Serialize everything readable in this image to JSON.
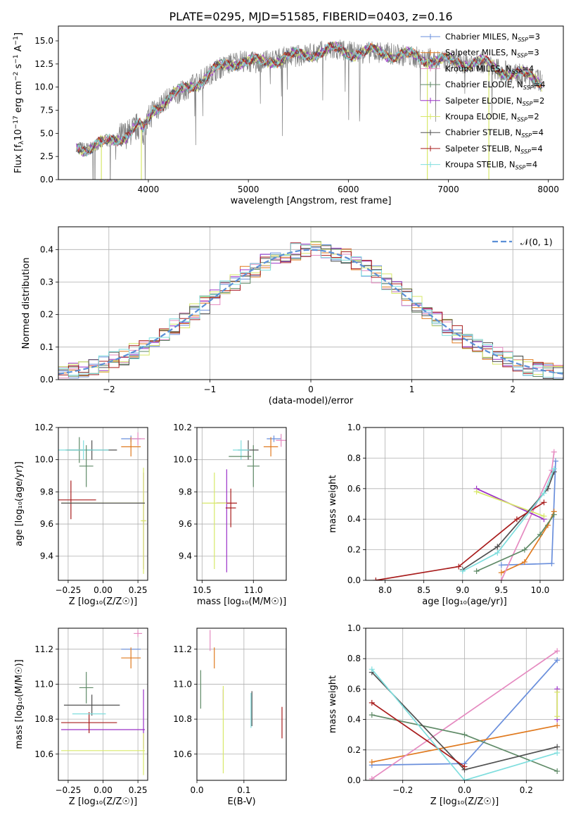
{
  "title": "PLATE=0295, MJD=51585, FIBERID=0403, z=0.16",
  "colors": {
    "Chabrier MILES": "#6a8fdc",
    "Salpeter MILES": "#e07a1f",
    "Kroupa MILES": "#e58ac0",
    "Chabrier ELODIE": "#5f8a67",
    "Salpeter ELODIE": "#9b30c8",
    "Kroupa ELODIE": "#d8e86a",
    "Chabrier STELIB": "#505050",
    "Salpeter STELIB": "#a81c1c",
    "Kroupa STELIB": "#7fdede",
    "data": "#808080",
    "normal": "#5b8fd6",
    "grid": "#b0b0b0"
  },
  "chart_data": [
    {
      "type": "line",
      "panel": "spectrum",
      "xlabel": "wavelength [Angstrom, rest frame]",
      "ylabel_parts": [
        "Flux [f",
        "λ",
        "10",
        "−17",
        " erg cm",
        "−2",
        " s",
        "−1",
        " A",
        "−1",
        "]"
      ],
      "xlim": [
        3100,
        8150
      ],
      "ylim": [
        0,
        16.6
      ],
      "xticks": [
        4000,
        5000,
        6000,
        7000,
        8000
      ],
      "yticks": [
        0.0,
        2.5,
        5.0,
        7.5,
        10.0,
        12.5,
        15.0
      ],
      "continuum_knots": [
        [
          3280,
          3.6
        ],
        [
          3400,
          3.4
        ],
        [
          3550,
          3.9
        ],
        [
          3650,
          4.3
        ],
        [
          3800,
          5.0
        ],
        [
          3900,
          5.8
        ],
        [
          3950,
          5.2
        ],
        [
          4050,
          7.6
        ],
        [
          4200,
          8.8
        ],
        [
          4350,
          9.6
        ],
        [
          4500,
          10.6
        ],
        [
          4700,
          12.0
        ],
        [
          4900,
          12.9
        ],
        [
          5100,
          12.6
        ],
        [
          5300,
          13.1
        ],
        [
          5500,
          13.4
        ],
        [
          5700,
          13.8
        ],
        [
          5900,
          14.0
        ],
        [
          6100,
          13.7
        ],
        [
          6300,
          13.8
        ],
        [
          6500,
          13.5
        ],
        [
          6700,
          13.2
        ],
        [
          6900,
          12.9
        ],
        [
          7100,
          12.6
        ],
        [
          7300,
          12.8
        ],
        [
          7500,
          11.9
        ],
        [
          7700,
          11.4
        ],
        [
          7900,
          10.8
        ],
        [
          7940,
          10.5
        ]
      ],
      "legend": [
        {
          "label": "Chabrier MILES, N",
          "sub": "SSP",
          "val": "=3"
        },
        {
          "label": "Salpeter MILES, N",
          "sub": "SSP",
          "val": "=3"
        },
        {
          "label": "Kroupa MILES, N",
          "sub": "SSP",
          "val": "=4"
        },
        {
          "label": "Chabrier ELODIE, N",
          "sub": "SSP",
          "val": "=4"
        },
        {
          "label": "Salpeter ELODIE, N",
          "sub": "SSP",
          "val": "=2"
        },
        {
          "label": "Kroupa ELODIE, N",
          "sub": "SSP",
          "val": "=2"
        },
        {
          "label": "Chabrier STELIB, N",
          "sub": "SSP",
          "val": "=4"
        },
        {
          "label": "Salpeter STELIB, N",
          "sub": "SSP",
          "val": "=4"
        },
        {
          "label": "Kroupa STELIB, N",
          "sub": "SSP",
          "val": "=4"
        }
      ],
      "models": [
        "Chabrier MILES",
        "Salpeter MILES",
        "Kroupa MILES",
        "Chabrier ELODIE",
        "Salpeter ELODIE",
        "Kroupa ELODIE",
        "Chabrier STELIB",
        "Salpeter STELIB",
        "Kroupa STELIB"
      ]
    },
    {
      "type": "histogram",
      "panel": "residuals",
      "xlabel": "(data-model)/error",
      "ylabel": "Normed distribution",
      "xlim": [
        -2.5,
        2.5
      ],
      "ylim": [
        0,
        0.47
      ],
      "xticks": [
        -2,
        -1,
        0,
        1,
        2
      ],
      "xticklabels": [
        "−2",
        "−1",
        "0",
        "1",
        "2"
      ],
      "yticks": [
        0.0,
        0.1,
        0.2,
        0.3,
        0.4
      ],
      "legend_label": "𝒩(0, 1)",
      "bin_width": 0.1
    },
    {
      "type": "scatter",
      "panel": "age-vs-Z",
      "xlabel": "Z [log₁₀(Z/Z☉)]",
      "ylabel": "age  [log₁₀(age/yr)]",
      "xlim": [
        -0.32,
        0.32
      ],
      "ylim": [
        9.25,
        10.2
      ],
      "xticks": [
        -0.25,
        0.0,
        0.25
      ],
      "xticklabels": [
        "−0.25",
        "0.00",
        "0.25"
      ],
      "yticks": [
        9.4,
        9.6,
        9.8,
        10.0,
        10.2
      ],
      "points": [
        {
          "model": "Chabrier MILES",
          "x": 0.2,
          "y": 10.13,
          "xerr": 0.07,
          "yerr": 0.02
        },
        {
          "model": "Salpeter MILES",
          "x": 0.2,
          "y": 10.08,
          "xerr": 0.07,
          "yerr": 0.06
        },
        {
          "model": "Kroupa MILES",
          "x": 0.25,
          "y": 10.13,
          "xerr": 0.05,
          "yerr": 0.04
        },
        {
          "model": "Chabrier ELODIE",
          "x": -0.17,
          "y": 10.06,
          "xerr": 0.1,
          "yerr": 0.08
        },
        {
          "model": "Salpeter ELODIE",
          "x": 0.29,
          "y": 9.62,
          "xerr": 0.01,
          "yerr": 0.3
        },
        {
          "model": "Kroupa ELODIE",
          "x": 0.29,
          "y": 9.62,
          "xerr": 0.02,
          "yerr": 0.33
        },
        {
          "model": "Chabrier STELIB",
          "x": -0.08,
          "y": 10.06,
          "xerr": 0.18,
          "yerr": 0.06
        },
        {
          "model": "Salpeter STELIB",
          "x": -0.23,
          "y": 9.75,
          "xerr": 0.18,
          "yerr": 0.12
        },
        {
          "model": "Kroupa STELIB",
          "x": -0.14,
          "y": 10.06,
          "xerr": 0.18,
          "yerr": 0.06
        },
        {
          "model": "Chabrier ELODIE",
          "x": -0.12,
          "y": 9.96,
          "xerr": 0.05,
          "yerr": 0.13
        },
        {
          "model": "Kroupa ELODIE",
          "x": 0.0,
          "y": 9.73,
          "xerr": 0.3,
          "yerr": 0.0
        },
        {
          "model": "Chabrier STELIB",
          "x": 0.0,
          "y": 9.73,
          "xerr": 0.3,
          "yerr": 0.0
        }
      ]
    },
    {
      "type": "scatter",
      "panel": "age-vs-mass",
      "xlabel": "mass [log₁₀(M/M☉)]",
      "xlim": [
        10.45,
        11.32
      ],
      "ylim": [
        9.25,
        10.2
      ],
      "xticks": [
        10.5,
        11.0
      ],
      "xticklabels": [
        "10.5",
        "11.0"
      ],
      "yticks": [
        9.4,
        9.6,
        9.8,
        10.0,
        10.2
      ],
      "points": [
        {
          "model": "Chabrier MILES",
          "x": 11.2,
          "y": 10.13,
          "xerr": 0.07,
          "yerr": 0.02
        },
        {
          "model": "Salpeter MILES",
          "x": 11.17,
          "y": 10.08,
          "xerr": 0.07,
          "yerr": 0.06
        },
        {
          "model": "Kroupa MILES",
          "x": 11.27,
          "y": 10.12,
          "xerr": 0.05,
          "yerr": 0.04
        },
        {
          "model": "Chabrier ELODIE",
          "x": 11.0,
          "y": 9.96,
          "xerr": 0.06,
          "yerr": 0.13
        },
        {
          "model": "Salpeter ELODIE",
          "x": 10.74,
          "y": 9.62,
          "xerr": 0.0,
          "yerr": 0.32
        },
        {
          "model": "Kroupa ELODIE",
          "x": 10.62,
          "y": 9.62,
          "xerr": 0.0,
          "yerr": 0.3
        },
        {
          "model": "Chabrier STELIB",
          "x": 10.95,
          "y": 10.06,
          "xerr": 0.1,
          "yerr": 0.06
        },
        {
          "model": "Salpeter STELIB",
          "x": 10.78,
          "y": 9.7,
          "xerr": 0.05,
          "yerr": 0.12
        },
        {
          "model": "Kroupa STELIB",
          "x": 10.88,
          "y": 10.06,
          "xerr": 0.08,
          "yerr": 0.06
        },
        {
          "model": "Chabrier ELODIE",
          "x": 10.87,
          "y": 10.02,
          "xerr": 0.11,
          "yerr": 0.0
        },
        {
          "model": "Salpeter STELIB",
          "x": 10.74,
          "y": 9.73,
          "xerr": 0.1,
          "yerr": 0.0
        },
        {
          "model": "Kroupa ELODIE",
          "x": 10.62,
          "y": 9.73,
          "xerr": 0.12,
          "yerr": 0.0
        }
      ]
    },
    {
      "type": "line",
      "panel": "massweight-vs-age",
      "xlabel": "age  [log₁₀(age/yr)]",
      "ylabel": "mass weight",
      "xlim": [
        7.75,
        10.3
      ],
      "ylim": [
        0,
        1.0
      ],
      "xticks": [
        8.0,
        8.5,
        9.0,
        9.5,
        10.0
      ],
      "xticklabels": [
        "8.0",
        "8.5",
        "9.0",
        "9.5",
        "10.0"
      ],
      "yticks": [
        0.0,
        0.2,
        0.4,
        0.6,
        0.8,
        1.0
      ],
      "series": [
        {
          "name": "Chabrier MILES",
          "x": [
            9.5,
            10.15,
            10.2
          ],
          "y": [
            0.1,
            0.11,
            0.78
          ]
        },
        {
          "name": "Salpeter MILES",
          "x": [
            9.5,
            9.8,
            10.1,
            10.18
          ],
          "y": [
            0.05,
            0.12,
            0.36,
            0.45
          ]
        },
        {
          "name": "Kroupa MILES",
          "x": [
            9.5,
            10.15,
            10.18
          ],
          "y": [
            0.0,
            0.72,
            0.84
          ]
        },
        {
          "name": "Chabrier ELODIE",
          "x": [
            9.18,
            9.8,
            10.0,
            10.18
          ],
          "y": [
            0.06,
            0.2,
            0.3,
            0.43
          ]
        },
        {
          "name": "Salpeter ELODIE",
          "x": [
            9.18,
            10.05
          ],
          "y": [
            0.6,
            0.4
          ]
        },
        {
          "name": "Kroupa ELODIE",
          "x": [
            9.18,
            10.05
          ],
          "y": [
            0.58,
            0.42
          ]
        },
        {
          "name": "Chabrier STELIB",
          "x": [
            9.0,
            9.45,
            10.1,
            10.18
          ],
          "y": [
            0.07,
            0.22,
            0.6,
            0.71
          ]
        },
        {
          "name": "Salpeter STELIB",
          "x": [
            7.88,
            8.95,
            9.7,
            10.05
          ],
          "y": [
            0.0,
            0.09,
            0.4,
            0.51
          ]
        },
        {
          "name": "Kroupa STELIB",
          "x": [
            9.0,
            9.45,
            10.05,
            10.18
          ],
          "y": [
            0.06,
            0.18,
            0.57,
            0.73
          ]
        }
      ]
    },
    {
      "type": "scatter",
      "panel": "mass-vs-Z",
      "xlabel": "Z [log₁₀(Z/Z☉)]",
      "ylabel": "mass [log₁₀(M/M☉)]",
      "xlim": [
        -0.32,
        0.32
      ],
      "ylim": [
        10.45,
        11.32
      ],
      "xticks": [
        -0.25,
        0.0,
        0.25
      ],
      "xticklabels": [
        "−0.25",
        "0.00",
        "0.25"
      ],
      "yticks": [
        10.6,
        10.8,
        11.0,
        11.2
      ],
      "points": [
        {
          "model": "Chabrier MILES",
          "x": 0.2,
          "y": 11.2,
          "xerr": 0.07,
          "yerr": 0.0
        },
        {
          "model": "Salpeter MILES",
          "x": 0.2,
          "y": 11.15,
          "xerr": 0.07,
          "yerr": 0.06
        },
        {
          "model": "Kroupa MILES",
          "x": 0.25,
          "y": 11.29,
          "xerr": 0.03,
          "yerr": 0.02
        },
        {
          "model": "Chabrier ELODIE",
          "x": -0.12,
          "y": 10.98,
          "xerr": 0.05,
          "yerr": 0.09
        },
        {
          "model": "Salpeter ELODIE",
          "x": 0.0,
          "y": 10.74,
          "xerr": 0.3,
          "yerr": 0.0
        },
        {
          "model": "Kroupa ELODIE",
          "x": 0.0,
          "y": 10.62,
          "xerr": 0.3,
          "yerr": 0.0
        },
        {
          "model": "Chabrier STELIB",
          "x": -0.08,
          "y": 10.88,
          "xerr": 0.2,
          "yerr": 0.06
        },
        {
          "model": "Salpeter STELIB",
          "x": -0.1,
          "y": 10.78,
          "xerr": 0.2,
          "yerr": 0.06
        },
        {
          "model": "Kroupa STELIB",
          "x": -0.1,
          "y": 10.83,
          "xerr": 0.12,
          "yerr": 0.0
        },
        {
          "model": "Salpeter ELODIE",
          "x": 0.29,
          "y": 10.8,
          "xerr": 0.0,
          "yerr": 0.17
        },
        {
          "model": "Kroupa ELODIE",
          "x": 0.29,
          "y": 10.6,
          "xerr": 0.0,
          "yerr": 0.12
        }
      ]
    },
    {
      "type": "scatter",
      "panel": "mass-vs-EBV",
      "xlabel": "E(B-V)",
      "xlim": [
        0.0,
        0.19
      ],
      "ylim": [
        10.45,
        11.32
      ],
      "xticks": [
        0.0,
        0.1
      ],
      "xticklabels": [
        "0.0",
        "0.1"
      ],
      "yticks": [
        10.6,
        10.8,
        11.0,
        11.2
      ],
      "points": [
        {
          "model": "Kroupa MILES",
          "x": 0.028,
          "y": 11.25,
          "yerr": 0.06
        },
        {
          "model": "Salpeter MILES",
          "x": 0.037,
          "y": 11.15,
          "yerr": 0.06
        },
        {
          "model": "Chabrier ELODIE",
          "x": 0.008,
          "y": 10.97,
          "yerr": 0.11
        },
        {
          "model": "Salpeter ELODIE",
          "x": 0.056,
          "y": 10.91,
          "yerr": 0.06
        },
        {
          "model": "Kroupa ELODIE",
          "x": 0.056,
          "y": 10.74,
          "yerr": 0.25
        },
        {
          "model": "Chabrier STELIB",
          "x": 0.117,
          "y": 10.86,
          "yerr": 0.1
        },
        {
          "model": "Kroupa STELIB",
          "x": 0.115,
          "y": 10.85,
          "yerr": 0.1
        },
        {
          "model": "Salpeter STELIB",
          "x": 0.181,
          "y": 10.78,
          "yerr": 0.09
        }
      ]
    },
    {
      "type": "line",
      "panel": "massweight-vs-Z",
      "xlabel": "Z [log₁₀(Z/Z☉)]",
      "ylabel": "mass weight",
      "xlim": [
        -0.32,
        0.32
      ],
      "ylim": [
        0,
        1.0
      ],
      "xticks": [
        -0.2,
        0.0,
        0.2
      ],
      "xticklabels": [
        "−0.2",
        "0.0",
        "0.2"
      ],
      "yticks": [
        0.0,
        0.2,
        0.4,
        0.6,
        0.8,
        1.0
      ],
      "series": [
        {
          "name": "Chabrier MILES",
          "x": [
            -0.3,
            0.0,
            0.3
          ],
          "y": [
            0.1,
            0.11,
            0.79
          ]
        },
        {
          "name": "Salpeter MILES",
          "x": [
            -0.3,
            0.3
          ],
          "y": [
            0.12,
            0.36
          ]
        },
        {
          "name": "Kroupa MILES",
          "x": [
            -0.3,
            0.3
          ],
          "y": [
            0.01,
            0.85
          ]
        },
        {
          "name": "Chabrier ELODIE",
          "x": [
            -0.3,
            0.0,
            0.3
          ],
          "y": [
            0.43,
            0.3,
            0.06
          ]
        },
        {
          "name": "Salpeter ELODIE",
          "x": [
            0.3,
            0.3
          ],
          "y": [
            0.4,
            0.6
          ]
        },
        {
          "name": "Kroupa ELODIE",
          "x": [
            0.3,
            0.3
          ],
          "y": [
            0.42,
            0.58
          ]
        },
        {
          "name": "Chabrier STELIB",
          "x": [
            -0.3,
            0.0,
            0.3
          ],
          "y": [
            0.71,
            0.07,
            0.22
          ]
        },
        {
          "name": "Salpeter STELIB",
          "x": [
            -0.3,
            0.0
          ],
          "y": [
            0.51,
            0.09
          ]
        },
        {
          "name": "Kroupa STELIB",
          "x": [
            -0.3,
            0.0,
            0.3
          ],
          "y": [
            0.73,
            0.0,
            0.18
          ]
        }
      ]
    }
  ]
}
